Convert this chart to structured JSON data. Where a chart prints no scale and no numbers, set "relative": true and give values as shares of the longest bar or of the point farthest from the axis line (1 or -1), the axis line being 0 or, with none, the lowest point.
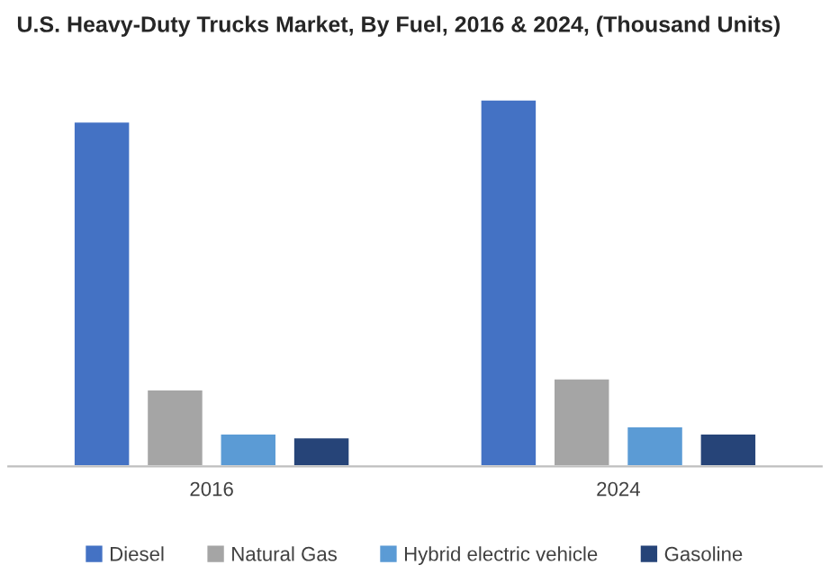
{
  "chart_data": {
    "type": "bar",
    "title": "U.S. Heavy-Duty Trucks Market, By Fuel, 2016 & 2024, (Thousand Units)",
    "categories": [
      "2016",
      "2024"
    ],
    "relative": true,
    "series": [
      {
        "name": "Diesel",
        "color": "#4472c4",
        "values": [
          0.94,
          1
        ]
      },
      {
        "name": "Natural Gas",
        "color": "#a5a5a5",
        "values": [
          0.21,
          0.24
        ]
      },
      {
        "name": "Hybrid electric vehicle",
        "color": "#5b9bd5",
        "values": [
          0.09,
          0.11
        ]
      },
      {
        "name": "Gasoline",
        "color": "#264478",
        "values": [
          0.08,
          0.09
        ]
      }
    ],
    "legend": "bottom",
    "grid": false
  }
}
